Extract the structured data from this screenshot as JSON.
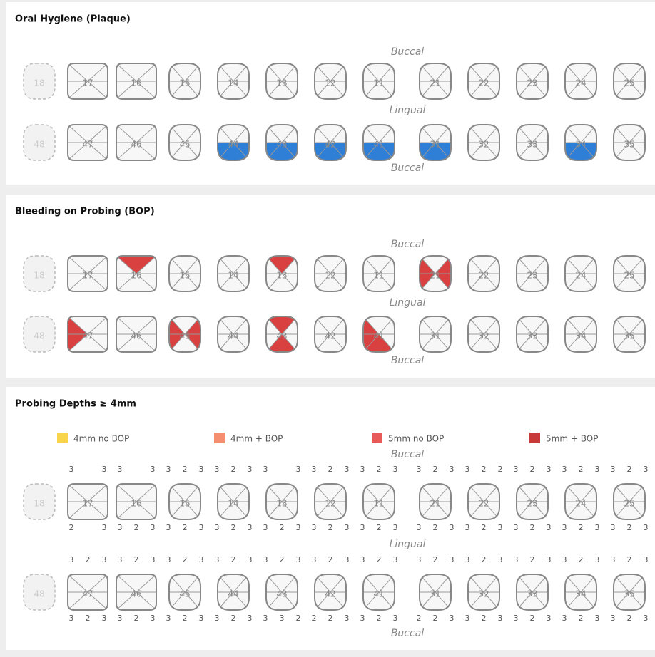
{
  "teeth": {
    "upper": [
      "18",
      "17",
      "16",
      "15",
      "14",
      "13",
      "12",
      "11",
      "21",
      "22",
      "23",
      "24",
      "25"
    ],
    "lower": [
      "48",
      "47",
      "46",
      "45",
      "44",
      "43",
      "42",
      "41",
      "31",
      "32",
      "33",
      "34",
      "35"
    ],
    "missing": [
      true,
      false,
      false,
      false,
      false,
      false,
      false,
      false,
      false,
      false,
      false,
      false,
      false
    ],
    "wide": [
      false,
      true,
      true,
      false,
      false,
      false,
      false,
      false,
      false,
      false,
      false,
      false,
      false
    ]
  },
  "sections": [
    {
      "title": "Oral Hygiene (Plaque)",
      "labels": [
        "Buccal",
        "Lingual",
        "Buccal"
      ],
      "highlights": [
        {
          "row": "lower",
          "index": 4,
          "half": "#2f7fd6"
        },
        {
          "row": "lower",
          "index": 5,
          "half": "#2f7fd6"
        },
        {
          "row": "lower",
          "index": 6,
          "half": "#2f7fd6"
        },
        {
          "row": "lower",
          "index": 7,
          "half": "#2f7fd6"
        },
        {
          "row": "lower",
          "index": 8,
          "half": "#2f7fd6"
        },
        {
          "row": "lower",
          "index": 11,
          "half": "#2f7fd6"
        }
      ]
    },
    {
      "title": "Bleeding on Probing (BOP)",
      "labels": [
        "Buccal",
        "Lingual",
        "Buccal"
      ],
      "highlights": [
        {
          "row": "upper",
          "index": 2,
          "fill": [
            "#d94040",
            null,
            null,
            null
          ]
        },
        {
          "row": "upper",
          "index": 5,
          "fill": [
            "#d94040",
            null,
            null,
            null
          ]
        },
        {
          "row": "upper",
          "index": 8,
          "fill": [
            null,
            "#d94040",
            null,
            "#d94040"
          ]
        },
        {
          "row": "lower",
          "index": 1,
          "fill": [
            null,
            null,
            null,
            "#d94040"
          ]
        },
        {
          "row": "lower",
          "index": 3,
          "fill": [
            null,
            "#d94040",
            null,
            "#d94040"
          ]
        },
        {
          "row": "lower",
          "index": 5,
          "fill": [
            "#d94040",
            null,
            "#d94040",
            null
          ]
        },
        {
          "row": "lower",
          "index": 7,
          "fill": [
            null,
            null,
            "#d94040",
            "#d94040"
          ]
        }
      ]
    },
    {
      "title": "Probing Depths ≥ 4mm",
      "labels": [
        "Buccal",
        "Lingual",
        "Buccal"
      ],
      "highlights": [],
      "legend": [
        {
          "name": "4mm no BOP",
          "color": "#f7d44c"
        },
        {
          "name": "4mm + BOP",
          "color": "#f58e6e"
        },
        {
          "name": "5mm no BOP",
          "color": "#e85a5a"
        },
        {
          "name": "5mm + BOP",
          "color": "#c83a3a"
        }
      ],
      "depths": {
        "upper_top": [
          [
            null,
            null,
            null
          ],
          [
            3,
            null,
            3
          ],
          [
            3,
            null,
            3
          ],
          [
            3,
            2,
            3
          ],
          [
            3,
            2,
            3
          ],
          [
            3,
            null,
            3
          ],
          [
            3,
            2,
            3
          ],
          [
            3,
            2,
            3
          ],
          [
            3,
            2,
            3
          ],
          [
            3,
            2,
            2
          ],
          [
            3,
            2,
            3
          ],
          [
            3,
            2,
            3
          ],
          [
            3,
            2,
            3
          ]
        ],
        "upper_bottom": [
          [
            null,
            null,
            null
          ],
          [
            2,
            null,
            3
          ],
          [
            3,
            2,
            3
          ],
          [
            3,
            2,
            3
          ],
          [
            3,
            2,
            3
          ],
          [
            3,
            2,
            3
          ],
          [
            3,
            2,
            3
          ],
          [
            3,
            2,
            3
          ],
          [
            3,
            2,
            3
          ],
          [
            3,
            2,
            3
          ],
          [
            3,
            2,
            3
          ],
          [
            3,
            2,
            3
          ],
          [
            3,
            2,
            3
          ]
        ],
        "lower_top": [
          [
            null,
            null,
            null
          ],
          [
            3,
            2,
            3
          ],
          [
            3,
            2,
            3
          ],
          [
            3,
            2,
            3
          ],
          [
            3,
            2,
            3
          ],
          [
            3,
            2,
            3
          ],
          [
            3,
            2,
            3
          ],
          [
            3,
            2,
            3
          ],
          [
            3,
            2,
            3
          ],
          [
            3,
            2,
            3
          ],
          [
            3,
            2,
            3
          ],
          [
            3,
            2,
            3
          ],
          [
            3,
            2,
            3
          ]
        ],
        "lower_bottom": [
          [
            null,
            null,
            null
          ],
          [
            3,
            2,
            3
          ],
          [
            3,
            2,
            3
          ],
          [
            3,
            2,
            3
          ],
          [
            3,
            2,
            3
          ],
          [
            3,
            3,
            2
          ],
          [
            2,
            2,
            3
          ],
          [
            3,
            2,
            3
          ],
          [
            2,
            2,
            3
          ],
          [
            3,
            2,
            3
          ],
          [
            3,
            2,
            3
          ],
          [
            3,
            2,
            3
          ],
          [
            3,
            2,
            3
          ]
        ]
      }
    }
  ]
}
